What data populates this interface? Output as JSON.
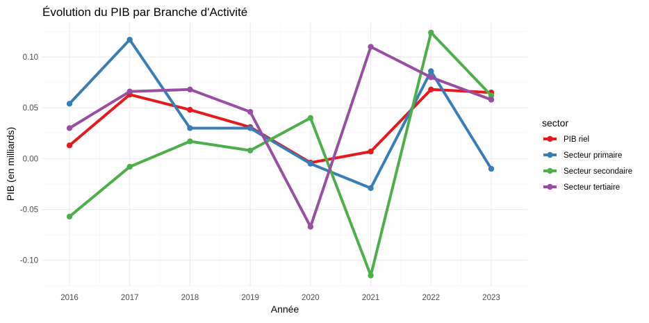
{
  "chart_data": {
    "type": "line",
    "title": "Évolution du PIB par Branche d'Activité",
    "xlabel": "Année",
    "ylabel": "PIB (en milliards)",
    "x": [
      2016,
      2017,
      2018,
      2019,
      2020,
      2021,
      2022,
      2023
    ],
    "xlim": [
      2015.55,
      2023.6
    ],
    "ylim": [
      -0.1255,
      0.1335
    ],
    "yticks": [
      -0.1,
      -0.05,
      0.0,
      0.05,
      0.1
    ],
    "ytick_labels": [
      "-0.10",
      "-0.05",
      "0.00",
      "0.05",
      "0.10"
    ],
    "grid": true,
    "legend": {
      "title": "sector",
      "position": "right"
    },
    "series": [
      {
        "name": "PIB riel",
        "color": "#e41a1c",
        "values": [
          0.013,
          0.063,
          0.048,
          0.031,
          -0.004,
          0.007,
          0.068,
          0.065
        ]
      },
      {
        "name": "Secteur primaire",
        "color": "#377eb8",
        "values": [
          0.054,
          0.117,
          0.03,
          0.03,
          -0.005,
          -0.029,
          0.086,
          -0.01
        ]
      },
      {
        "name": "Secteur secondaire",
        "color": "#4daf4a",
        "values": [
          -0.057,
          -0.008,
          0.017,
          0.008,
          0.04,
          -0.115,
          0.124,
          0.062
        ]
      },
      {
        "name": "Secteur tertiaire",
        "color": "#984ea3",
        "values": [
          0.03,
          0.066,
          0.068,
          0.046,
          -0.067,
          0.11,
          0.08,
          0.058
        ]
      }
    ]
  }
}
